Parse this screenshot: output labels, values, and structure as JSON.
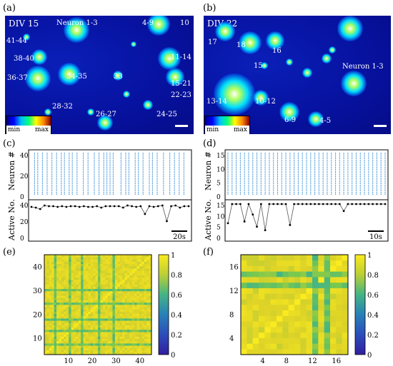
{
  "panels": {
    "a": {
      "letter": "(a)",
      "title": "DIV 15",
      "labels": [
        "Neuron 1-3",
        "4-9",
        "10",
        "41-44",
        "38-40",
        "11-14",
        "36-37",
        "34-35",
        "33",
        "15-21",
        "22-23",
        "28-32",
        "26-27",
        "24-25"
      ],
      "cbar_min": "min",
      "cbar_max": "max"
    },
    "b": {
      "letter": "(b)",
      "title": "DIV 22",
      "labels": [
        "17",
        "18",
        "16",
        "15",
        "Neuron 1-3",
        "13-14",
        "10-12",
        "6-9",
        "4-5"
      ],
      "cbar_min": "min",
      "cbar_max": "max"
    },
    "c": {
      "letter": "(c)",
      "ylabel_top": "Neuron #",
      "ylabel_bottom": "Active No.",
      "yticks_top": [
        "40",
        "20",
        "0"
      ],
      "yticks_bottom": [
        "40",
        "20",
        "0"
      ],
      "scale": "20s"
    },
    "d": {
      "letter": "(d)",
      "ylabel_top": "Neuron #",
      "ylabel_bottom": "Active No.",
      "yticks_top": [
        "15",
        "10",
        "5",
        "0"
      ],
      "yticks_bottom": [
        "15",
        "10",
        "5",
        "0"
      ],
      "scale": "10s"
    },
    "e": {
      "letter": "(e)",
      "xticks": [
        "10",
        "20",
        "30",
        "40"
      ],
      "yticks": [
        "40",
        "30",
        "20",
        "10"
      ],
      "cbar_ticks": [
        "1",
        "0.8",
        "0.6",
        "0.4",
        "0.2",
        "0"
      ]
    },
    "f": {
      "letter": "(f)",
      "xticks": [
        "4",
        "8",
        "12",
        "16"
      ],
      "yticks": [
        "16",
        "12",
        "8",
        "4"
      ],
      "cbar_ticks": [
        "1",
        "0.8",
        "0.6",
        "0.4",
        "0.2",
        "0"
      ]
    }
  },
  "chart_data": [
    {
      "type": "scatter",
      "panel": "c",
      "title": "",
      "xlabel": "",
      "ylabel": "Neuron #",
      "ylim": [
        0,
        44
      ],
      "spike_times_rel": [
        0.02,
        0.04,
        0.07,
        0.1,
        0.13,
        0.16,
        0.19,
        0.21,
        0.24,
        0.26,
        0.29,
        0.33,
        0.36,
        0.4,
        0.43,
        0.46,
        0.48,
        0.5,
        0.52,
        0.57,
        0.6,
        0.62,
        0.66,
        0.68,
        0.71,
        0.75,
        0.77,
        0.8,
        0.84,
        0.88,
        0.91,
        0.94,
        0.97
      ]
    },
    {
      "type": "line",
      "panel": "c",
      "title": "",
      "xlabel": "",
      "ylabel": "Active No.",
      "ylim": [
        0,
        44
      ],
      "values": [
        40,
        39,
        37,
        42,
        41,
        41,
        40,
        41,
        40,
        41,
        41,
        40,
        41,
        40,
        40,
        41,
        39,
        41,
        41,
        41,
        41,
        39,
        42,
        41,
        40,
        41,
        30,
        41,
        40,
        41,
        42,
        20,
        41,
        42,
        39,
        41,
        41
      ]
    },
    {
      "type": "scatter",
      "panel": "d",
      "title": "",
      "xlabel": "",
      "ylabel": "Neuron #",
      "ylim": [
        0,
        18
      ]
    },
    {
      "type": "line",
      "panel": "d",
      "title": "",
      "xlabel": "",
      "ylabel": "Active No.",
      "ylim": [
        0,
        18
      ],
      "values": [
        7,
        18,
        18,
        18,
        8,
        18,
        12,
        5,
        18,
        3,
        18,
        18,
        18,
        18,
        18,
        6,
        18,
        18,
        18,
        18,
        18,
        18,
        18,
        18,
        18,
        18,
        18,
        18,
        14,
        18,
        18,
        18,
        18,
        18,
        18,
        18,
        18,
        18,
        18
      ]
    },
    {
      "type": "heatmap",
      "panel": "e",
      "title": "",
      "xlabel": "",
      "ylabel": "",
      "n": 44,
      "range": [
        0,
        1
      ]
    },
    {
      "type": "heatmap",
      "panel": "f",
      "title": "",
      "xlabel": "",
      "ylabel": "",
      "n": 18,
      "range": [
        0,
        1
      ]
    }
  ]
}
